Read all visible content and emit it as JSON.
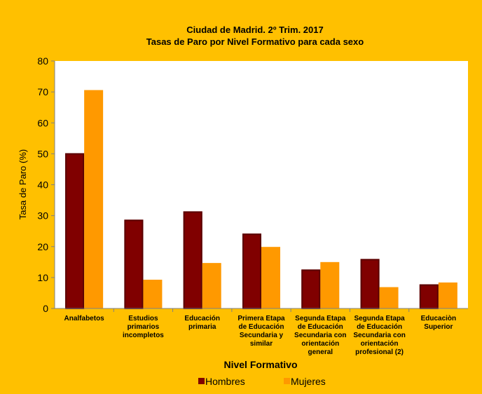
{
  "chart_data": {
    "type": "bar",
    "title": "Ciudad de Madrid. 2º Trim. 2017",
    "subtitle": "Tasas de Paro por Nivel Formativo para cada sexo",
    "xlabel": "Nivel Formativo",
    "ylabel": "Tasa de Paro (%)",
    "ylim": [
      0,
      80
    ],
    "yticks": [
      0,
      10,
      20,
      30,
      40,
      50,
      60,
      70,
      80
    ],
    "grid": false,
    "legend": "bottom",
    "categories": [
      [
        "Analfabetos"
      ],
      [
        "Estudios",
        "primarios",
        "incompletos"
      ],
      [
        "Educación",
        "primaria"
      ],
      [
        "Primera Etapa",
        "de Educación",
        "Secundaria y",
        "similar"
      ],
      [
        "Segunda Etapa",
        "de Educación",
        "Secundaria con",
        "orientación",
        "general"
      ],
      [
        "Segunda Etapa",
        "de Educación",
        "Secundaria con",
        "orientación",
        "profesional (2)"
      ],
      [
        "Educaciòn",
        "Superior"
      ]
    ],
    "series": [
      {
        "name": "Hombres",
        "color": "#800000",
        "values": [
          50.2,
          28.7,
          31.4,
          24.2,
          12.6,
          16.0,
          7.8
        ]
      },
      {
        "name": "Mujeres",
        "color": "#ff9900",
        "values": [
          70.6,
          9.3,
          14.7,
          19.9,
          15.0,
          6.9,
          8.4
        ]
      }
    ]
  }
}
